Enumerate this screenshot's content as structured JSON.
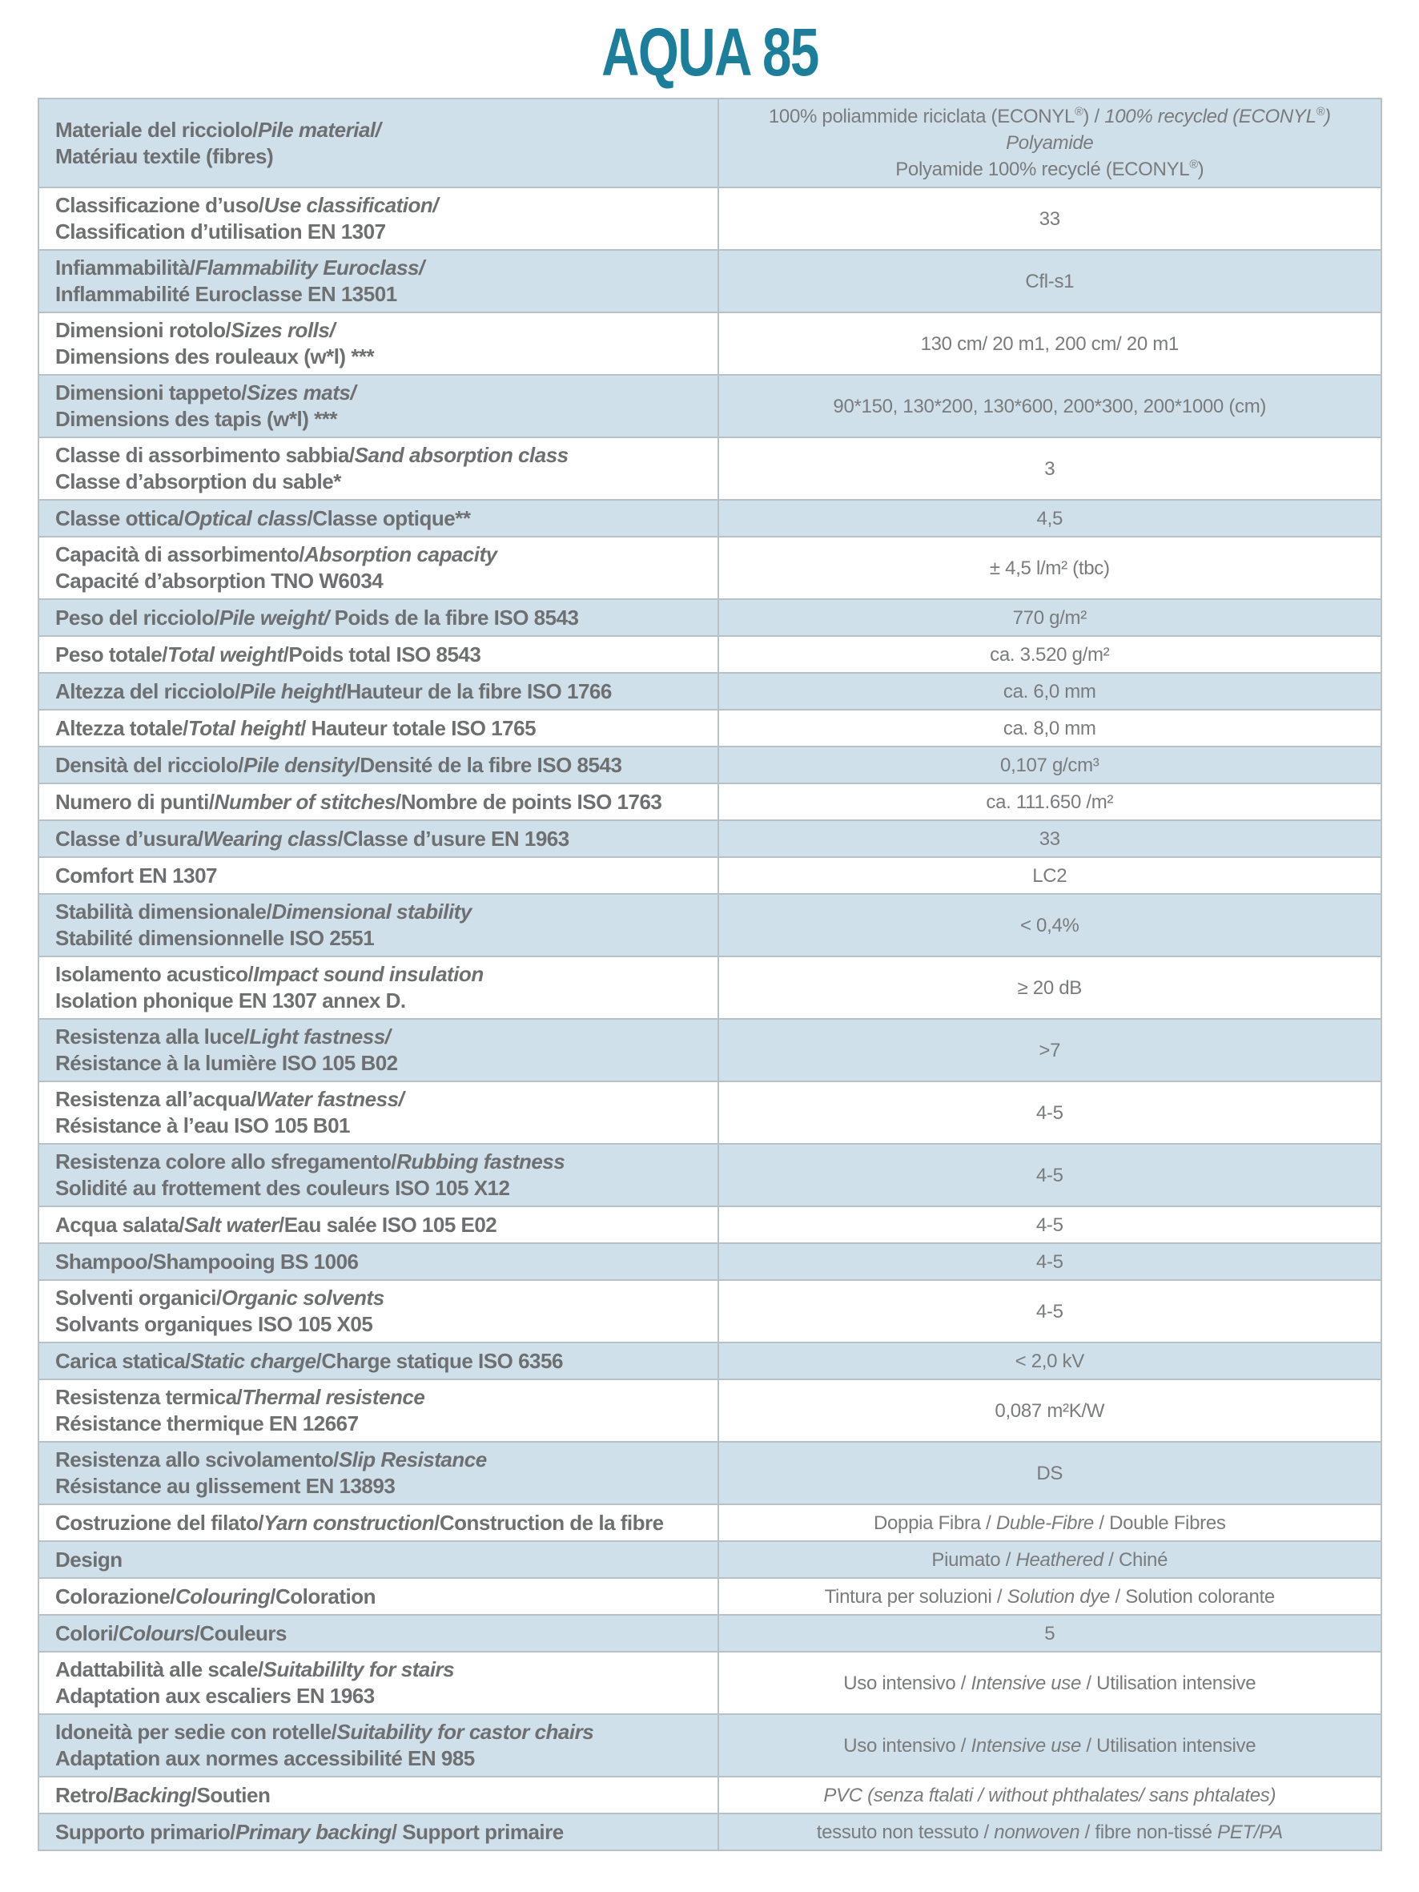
{
  "title": "AQUA 85",
  "theme": {
    "title_color": "#1b7f9c",
    "row_blue_bg": "#cfe0eb",
    "border_color": "#b6c1c8",
    "label_text_color": "#6e6f71",
    "value_text_color": "#7a7b7d"
  },
  "table": {
    "rows": [
      {
        "bg": "blue",
        "label": [
          [
            {
              "t": "Materiale del ricciolo/"
            },
            {
              "t": "Pile material/",
              "i": true
            }
          ],
          [
            {
              "t": "Matériau textile (fibres)"
            }
          ]
        ],
        "value": [
          [
            {
              "t": "100% poliammide riciclata (ECONYL®) / "
            },
            {
              "t": "100% recycled (ECONYL®) Polyamide",
              "i": true
            }
          ],
          [
            {
              "t": "Polyamide 100% recyclé (ECONYL®)"
            }
          ]
        ]
      },
      {
        "bg": "white",
        "label": [
          [
            {
              "t": "Classificazione d’uso/"
            },
            {
              "t": "Use classification/",
              "i": true
            }
          ],
          [
            {
              "t": "Classification d’utilisation EN 1307"
            }
          ]
        ],
        "value": [
          [
            {
              "t": "33"
            }
          ]
        ]
      },
      {
        "bg": "blue",
        "label": [
          [
            {
              "t": "Infiammabilità/"
            },
            {
              "t": "Flammability Euroclass/",
              "i": true
            }
          ],
          [
            {
              "t": "Inflammabilité Euroclasse EN 13501"
            }
          ]
        ],
        "value": [
          [
            {
              "t": "Cfl-s1"
            }
          ]
        ]
      },
      {
        "bg": "white",
        "label": [
          [
            {
              "t": "Dimensioni rotolo/"
            },
            {
              "t": "Sizes rolls/",
              "i": true
            }
          ],
          [
            {
              "t": "Dimensions des rouleaux (w*l) ***"
            }
          ]
        ],
        "value": [
          [
            {
              "t": "130 cm/ 20 m1, 200 cm/ 20 m1"
            }
          ]
        ]
      },
      {
        "bg": "blue",
        "label": [
          [
            {
              "t": "Dimensioni tappeto/"
            },
            {
              "t": "Sizes mats/",
              "i": true
            }
          ],
          [
            {
              "t": "Dimensions des tapis (w*l) ***"
            }
          ]
        ],
        "value": [
          [
            {
              "t": "90*150, 130*200, 130*600, 200*300, 200*1000 (cm)"
            }
          ]
        ]
      },
      {
        "bg": "white",
        "label": [
          [
            {
              "t": "Classe di assorbimento sabbia/"
            },
            {
              "t": "Sand absorption class",
              "i": true
            }
          ],
          [
            {
              "t": "Classe d’absorption du sable*"
            }
          ]
        ],
        "value": [
          [
            {
              "t": "3"
            }
          ]
        ]
      },
      {
        "bg": "blue",
        "label": [
          [
            {
              "t": "Classe ottica/"
            },
            {
              "t": "Optical class",
              "i": true
            },
            {
              "t": "/Classe optique**"
            }
          ]
        ],
        "value": [
          [
            {
              "t": "4,5"
            }
          ]
        ]
      },
      {
        "bg": "white",
        "label": [
          [
            {
              "t": "Capacità di assorbimento/"
            },
            {
              "t": "Absorption capacity",
              "i": true
            }
          ],
          [
            {
              "t": "Capacité d’absorption TNO W6034"
            }
          ]
        ],
        "value": [
          [
            {
              "t": "± 4,5 l/m² (tbc)"
            }
          ]
        ]
      },
      {
        "bg": "blue",
        "label": [
          [
            {
              "t": "Peso del ricciolo/"
            },
            {
              "t": "Pile weight/",
              "i": true
            },
            {
              "t": " Poids de la fibre ISO 8543"
            }
          ]
        ],
        "value": [
          [
            {
              "t": "770 g/m²"
            }
          ]
        ]
      },
      {
        "bg": "white",
        "label": [
          [
            {
              "t": "Peso totale/"
            },
            {
              "t": "Total weight",
              "i": true
            },
            {
              "t": "/Poids total ISO 8543"
            }
          ]
        ],
        "value": [
          [
            {
              "t": "ca. 3.520 g/m²"
            }
          ]
        ]
      },
      {
        "bg": "blue",
        "label": [
          [
            {
              "t": "Altezza del ricciolo/"
            },
            {
              "t": "Pile height",
              "i": true
            },
            {
              "t": "/Hauteur de la fibre ISO 1766"
            }
          ]
        ],
        "value": [
          [
            {
              "t": "ca. 6,0 mm"
            }
          ]
        ]
      },
      {
        "bg": "white",
        "label": [
          [
            {
              "t": "Altezza totale/"
            },
            {
              "t": "Total height",
              "i": true
            },
            {
              "t": "/ Hauteur totale ISO 1765"
            }
          ]
        ],
        "value": [
          [
            {
              "t": "ca. 8,0 mm"
            }
          ]
        ]
      },
      {
        "bg": "blue",
        "label": [
          [
            {
              "t": "Densità del ricciolo/"
            },
            {
              "t": "Pile density",
              "i": true
            },
            {
              "t": "/Densité de la fibre ISO 8543"
            }
          ]
        ],
        "value": [
          [
            {
              "t": "0,107 g/cm³"
            }
          ]
        ]
      },
      {
        "bg": "white",
        "label": [
          [
            {
              "t": "Numero di punti/"
            },
            {
              "t": "Number of stitches",
              "i": true
            },
            {
              "t": "/Nombre de points ISO 1763"
            }
          ]
        ],
        "value": [
          [
            {
              "t": "ca. 111.650 /m²"
            }
          ]
        ]
      },
      {
        "bg": "blue",
        "label": [
          [
            {
              "t": "Classe d’usura/"
            },
            {
              "t": "Wearing class",
              "i": true
            },
            {
              "t": "/Classe d’usure EN 1963"
            }
          ]
        ],
        "value": [
          [
            {
              "t": "33"
            }
          ]
        ]
      },
      {
        "bg": "white",
        "label": [
          [
            {
              "t": "Comfort EN 1307"
            }
          ]
        ],
        "value": [
          [
            {
              "t": "LC2"
            }
          ]
        ]
      },
      {
        "bg": "blue",
        "label": [
          [
            {
              "t": "Stabilità dimensionale/"
            },
            {
              "t": "Dimensional stability",
              "i": true
            }
          ],
          [
            {
              "t": "Stabilité dimensionnelle ISO 2551"
            }
          ]
        ],
        "value": [
          [
            {
              "t": "< 0,4%"
            }
          ]
        ]
      },
      {
        "bg": "white",
        "label": [
          [
            {
              "t": "Isolamento acustico/"
            },
            {
              "t": "Impact sound insulation",
              "i": true
            }
          ],
          [
            {
              "t": "Isolation phonique EN 1307 annex D."
            }
          ]
        ],
        "value": [
          [
            {
              "t": "≥ 20 dB"
            }
          ]
        ]
      },
      {
        "bg": "blue",
        "label": [
          [
            {
              "t": "Resistenza alla luce/"
            },
            {
              "t": "Light fastness/",
              "i": true
            }
          ],
          [
            {
              "t": "Résistance à la lumière ISO 105 B02"
            }
          ]
        ],
        "value": [
          [
            {
              "t": ">7"
            }
          ]
        ]
      },
      {
        "bg": "white",
        "label": [
          [
            {
              "t": "Resistenza all’acqua/"
            },
            {
              "t": "Water fastness/",
              "i": true
            }
          ],
          [
            {
              "t": "Résistance à l’eau ISO 105 B01"
            }
          ]
        ],
        "value": [
          [
            {
              "t": "4-5"
            }
          ]
        ]
      },
      {
        "bg": "blue",
        "label": [
          [
            {
              "t": "Resistenza colore allo sfregamento/"
            },
            {
              "t": "Rubbing fastness",
              "i": true
            }
          ],
          [
            {
              "t": "Solidité au frottement des couleurs ISO 105 X12"
            }
          ]
        ],
        "value": [
          [
            {
              "t": "4-5"
            }
          ]
        ]
      },
      {
        "bg": "white",
        "label": [
          [
            {
              "t": "Acqua salata/"
            },
            {
              "t": "Salt water",
              "i": true
            },
            {
              "t": "/Eau salée ISO 105 E02"
            }
          ]
        ],
        "value": [
          [
            {
              "t": "4-5"
            }
          ]
        ]
      },
      {
        "bg": "blue",
        "label": [
          [
            {
              "t": "Shampoo/Shampooing BS 1006"
            }
          ]
        ],
        "value": [
          [
            {
              "t": "4-5"
            }
          ]
        ]
      },
      {
        "bg": "white",
        "label": [
          [
            {
              "t": "Solventi organici/"
            },
            {
              "t": "Organic solvents",
              "i": true
            }
          ],
          [
            {
              "t": "Solvants organiques ISO 105 X05"
            }
          ]
        ],
        "value": [
          [
            {
              "t": "4-5"
            }
          ]
        ]
      },
      {
        "bg": "blue",
        "label": [
          [
            {
              "t": "Carica statica/"
            },
            {
              "t": "Static charge",
              "i": true
            },
            {
              "t": "/Charge statique ISO 6356"
            }
          ]
        ],
        "value": [
          [
            {
              "t": "< 2,0 kV"
            }
          ]
        ]
      },
      {
        "bg": "white",
        "label": [
          [
            {
              "t": "Resistenza termica/"
            },
            {
              "t": "Thermal resistence",
              "i": true
            }
          ],
          [
            {
              "t": "Résistance thermique EN 12667"
            }
          ]
        ],
        "value": [
          [
            {
              "t": "0,087 m²K/W"
            }
          ]
        ]
      },
      {
        "bg": "blue",
        "label": [
          [
            {
              "t": "Resistenza allo scivolamento/"
            },
            {
              "t": "Slip Resistance",
              "i": true
            }
          ],
          [
            {
              "t": "Résistance au glissement EN 13893"
            }
          ]
        ],
        "value": [
          [
            {
              "t": "DS"
            }
          ]
        ]
      },
      {
        "bg": "white",
        "label": [
          [
            {
              "t": "Costruzione del filato/"
            },
            {
              "t": "Yarn construction",
              "i": true
            },
            {
              "t": "/Construction de la fibre"
            }
          ]
        ],
        "value": [
          [
            {
              "t": "Doppia Fibra / "
            },
            {
              "t": "Duble-Fibre",
              "i": true
            },
            {
              "t": " / Double Fibres"
            }
          ]
        ]
      },
      {
        "bg": "blue",
        "label": [
          [
            {
              "t": "Design"
            }
          ]
        ],
        "value": [
          [
            {
              "t": "Piumato / "
            },
            {
              "t": "Heathered",
              "i": true
            },
            {
              "t": " / Chiné"
            }
          ]
        ]
      },
      {
        "bg": "white",
        "label": [
          [
            {
              "t": "Colorazione/"
            },
            {
              "t": "Colouring",
              "i": true
            },
            {
              "t": "/Coloration"
            }
          ]
        ],
        "value": [
          [
            {
              "t": "Tintura per soluzioni / "
            },
            {
              "t": "Solution dye",
              "i": true
            },
            {
              "t": " / Solution colorante"
            }
          ]
        ]
      },
      {
        "bg": "blue",
        "label": [
          [
            {
              "t": "Colori/"
            },
            {
              "t": "Colours",
              "i": true
            },
            {
              "t": "/Couleurs"
            }
          ]
        ],
        "value": [
          [
            {
              "t": "5"
            }
          ]
        ]
      },
      {
        "bg": "white",
        "label": [
          [
            {
              "t": "Adattabilità alle scale/"
            },
            {
              "t": "Suitabililty for stairs",
              "i": true
            }
          ],
          [
            {
              "t": "Adaptation aux escaliers EN 1963"
            }
          ]
        ],
        "value": [
          [
            {
              "t": "Uso intensivo / "
            },
            {
              "t": "Intensive use",
              "i": true
            },
            {
              "t": " / Utilisation intensive"
            }
          ]
        ]
      },
      {
        "bg": "blue",
        "label": [
          [
            {
              "t": "Idoneità per sedie con rotelle/"
            },
            {
              "t": "Suitability for castor chairs",
              "i": true
            }
          ],
          [
            {
              "t": "Adaptation aux normes accessibilité EN 985"
            }
          ]
        ],
        "value": [
          [
            {
              "t": "Uso intensivo / "
            },
            {
              "t": "Intensive use",
              "i": true
            },
            {
              "t": " / Utilisation intensive"
            }
          ]
        ]
      },
      {
        "bg": "white",
        "label": [
          [
            {
              "t": "Retro/"
            },
            {
              "t": "Backing",
              "i": true
            },
            {
              "t": "/Soutien"
            }
          ]
        ],
        "value": [
          [
            {
              "t": "PVC (senza ftalati / without phthalates/ sans phtalates)",
              "i": true
            }
          ]
        ]
      },
      {
        "bg": "blue",
        "label": [
          [
            {
              "t": "Supporto primario/"
            },
            {
              "t": "Primary backing",
              "i": true
            },
            {
              "t": "/ Support primaire"
            }
          ]
        ],
        "value": [
          [
            {
              "t": "tessuto non tessuto / "
            },
            {
              "t": "nonwoven",
              "i": true
            },
            {
              "t": " /  fibre non-tissé "
            },
            {
              "t": "PET/PA",
              "i": true
            }
          ]
        ]
      }
    ]
  }
}
